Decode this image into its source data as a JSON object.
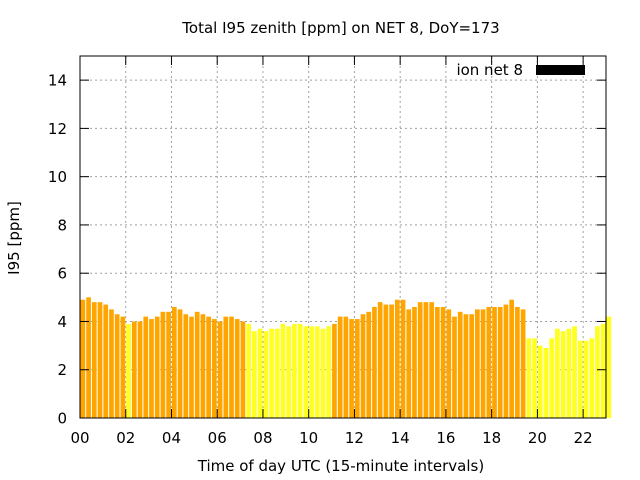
{
  "chart_data": {
    "type": "bar",
    "title": "Total I95 zenith [ppm] on NET 8, DoY=173",
    "xlabel": "Time of day UTC (15-minute intervals)",
    "ylabel": "I95 [ppm]",
    "xlim": [
      0,
      23
    ],
    "ylim": [
      0,
      15
    ],
    "x_ticks": [
      0,
      2,
      4,
      6,
      8,
      10,
      12,
      14,
      16,
      18,
      20,
      22
    ],
    "x_tick_labels": [
      "00",
      "02",
      "04",
      "06",
      "08",
      "10",
      "12",
      "14",
      "16",
      "18",
      "20",
      "22"
    ],
    "y_ticks": [
      0,
      2,
      4,
      6,
      8,
      10,
      12,
      14
    ],
    "y_tick_labels": [
      "0",
      "2",
      "4",
      "6",
      "8",
      "10",
      "12",
      "14"
    ],
    "grid": true,
    "legend_position": "top-right",
    "bar_interval_hours": 0.25,
    "series": [
      {
        "name": "ion net 8",
        "legend_color": "#000000",
        "bar_colors": {
          "orange": "#ffa500",
          "yellow": "#ffff22"
        },
        "values": [
          4.9,
          5.0,
          4.8,
          4.8,
          4.7,
          4.5,
          4.3,
          4.2,
          3.9,
          4.0,
          4.0,
          4.2,
          4.1,
          4.2,
          4.4,
          4.4,
          4.6,
          4.5,
          4.3,
          4.2,
          4.4,
          4.3,
          4.2,
          4.1,
          4.0,
          4.2,
          4.2,
          4.1,
          4.0,
          3.9,
          3.6,
          3.7,
          3.6,
          3.7,
          3.7,
          3.9,
          3.8,
          3.9,
          3.9,
          3.8,
          3.8,
          3.8,
          3.7,
          3.8,
          3.9,
          4.2,
          4.2,
          4.1,
          4.1,
          4.3,
          4.4,
          4.6,
          4.8,
          4.7,
          4.7,
          4.9,
          4.9,
          4.5,
          4.6,
          4.8,
          4.8,
          4.8,
          4.6,
          4.6,
          4.5,
          4.2,
          4.4,
          4.3,
          4.3,
          4.5,
          4.5,
          4.6,
          4.6,
          4.6,
          4.7,
          4.9,
          4.6,
          4.5,
          3.3,
          3.3,
          3.0,
          2.9,
          3.3,
          3.7,
          3.6,
          3.7,
          3.8,
          3.2,
          3.2,
          3.3,
          3.8,
          3.9,
          4.2
        ],
        "colors": [
          "orange",
          "orange",
          "orange",
          "orange",
          "orange",
          "orange",
          "orange",
          "orange",
          "yellow",
          "orange",
          "orange",
          "orange",
          "orange",
          "orange",
          "orange",
          "orange",
          "orange",
          "orange",
          "orange",
          "orange",
          "orange",
          "orange",
          "orange",
          "orange",
          "orange",
          "orange",
          "orange",
          "orange",
          "orange",
          "yellow",
          "yellow",
          "yellow",
          "yellow",
          "yellow",
          "yellow",
          "yellow",
          "yellow",
          "yellow",
          "yellow",
          "yellow",
          "yellow",
          "yellow",
          "yellow",
          "yellow",
          "orange",
          "orange",
          "orange",
          "orange",
          "orange",
          "orange",
          "orange",
          "orange",
          "orange",
          "orange",
          "orange",
          "orange",
          "orange",
          "orange",
          "orange",
          "orange",
          "orange",
          "orange",
          "orange",
          "orange",
          "orange",
          "orange",
          "orange",
          "orange",
          "orange",
          "orange",
          "orange",
          "orange",
          "orange",
          "orange",
          "orange",
          "orange",
          "orange",
          "orange",
          "yellow",
          "yellow",
          "yellow",
          "yellow",
          "yellow",
          "yellow",
          "yellow",
          "yellow",
          "yellow",
          "yellow",
          "yellow",
          "yellow",
          "yellow",
          "yellow",
          "yellow"
        ]
      }
    ]
  }
}
